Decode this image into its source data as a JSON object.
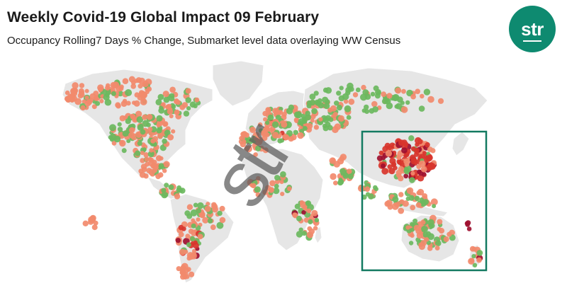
{
  "title": "Weekly Covid-19 Global Impact 09 February",
  "subtitle": "Occupancy Rolling7 Days % Change, Submarket level data overlaying WW Census",
  "logo_text": "str",
  "watermark_text": "str",
  "colors": {
    "land": "#e6e6e6",
    "border": "#ffffff",
    "salmon": "#f28a6c",
    "green": "#6bb85e",
    "red": "#d8352c",
    "darkred": "#9e1030",
    "highlight_box": "#137a61",
    "logo_bg": "#0e8a70"
  },
  "highlight_region": "Asia Pacific"
}
